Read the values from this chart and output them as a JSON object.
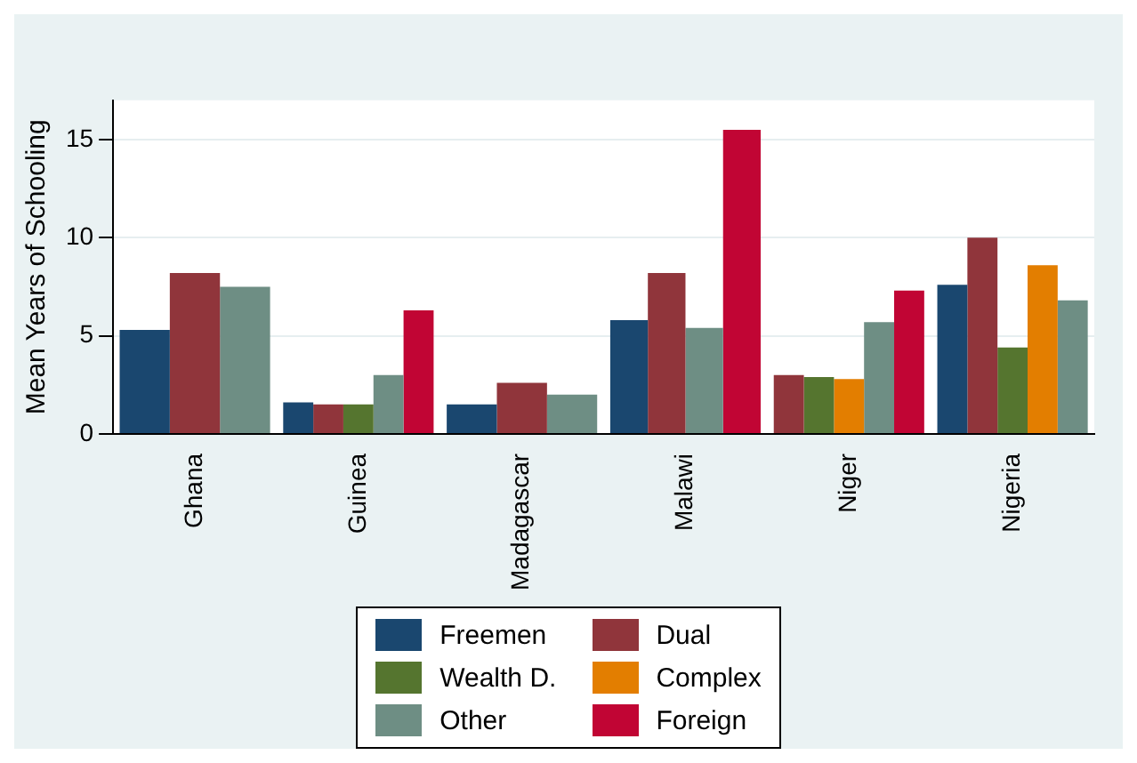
{
  "chart_data": {
    "type": "bar",
    "ylabel": "Mean Years of Schooling",
    "categories": [
      "Ghana",
      "Guinea",
      "Madagascar",
      "Malawi",
      "Niger",
      "Nigeria"
    ],
    "series": [
      {
        "name": "Freemen",
        "color": "#1a476f",
        "values": [
          5.3,
          1.6,
          1.5,
          5.8,
          null,
          7.6
        ]
      },
      {
        "name": "Dual",
        "color": "#90353b",
        "values": [
          8.2,
          1.5,
          2.6,
          8.2,
          3.0,
          10.0
        ]
      },
      {
        "name": "Wealth D.",
        "color": "#55752f",
        "values": [
          null,
          1.5,
          null,
          null,
          2.9,
          4.4
        ]
      },
      {
        "name": "Complex",
        "color": "#e37e00",
        "values": [
          null,
          null,
          null,
          null,
          2.8,
          8.6
        ]
      },
      {
        "name": "Other",
        "color": "#6e8e84",
        "values": [
          7.5,
          3.0,
          2.0,
          5.4,
          5.7,
          6.8
        ]
      },
      {
        "name": "Foreign",
        "color": "#c10534",
        "values": [
          null,
          6.3,
          null,
          15.5,
          7.3,
          null
        ]
      }
    ],
    "ylim": [
      0,
      17
    ],
    "yticks": [
      0,
      5,
      10,
      15
    ],
    "grid": "y",
    "legend": "bottom"
  }
}
